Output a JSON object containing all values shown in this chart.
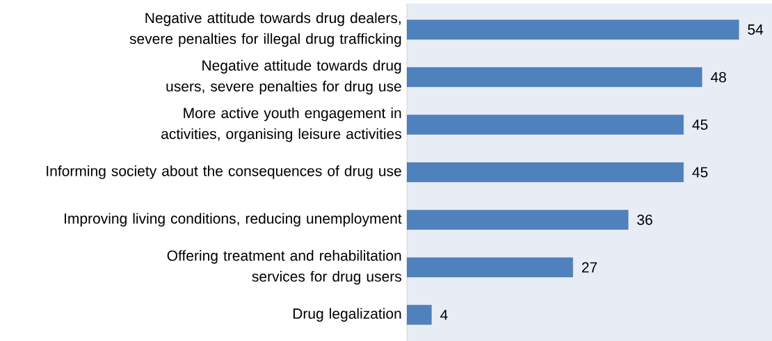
{
  "chart_data": {
    "type": "bar",
    "orientation": "horizontal",
    "categories": [
      "Negative attitude towards drug dealers, severe penalties for illegal drug trafficking",
      "Negative attitude towards drug users, severe penalties for drug use",
      "More active youth engagement in activities, organising leisure activities",
      "Informing society about the consequences of drug use",
      "Improving living conditions, reducing unemployment",
      "Offering treatment and rehabilitation services for drug users",
      "Drug legalization"
    ],
    "values": [
      54,
      48,
      45,
      45,
      36,
      27,
      4
    ],
    "color": "#4f81bd",
    "data_labels": true
  }
}
